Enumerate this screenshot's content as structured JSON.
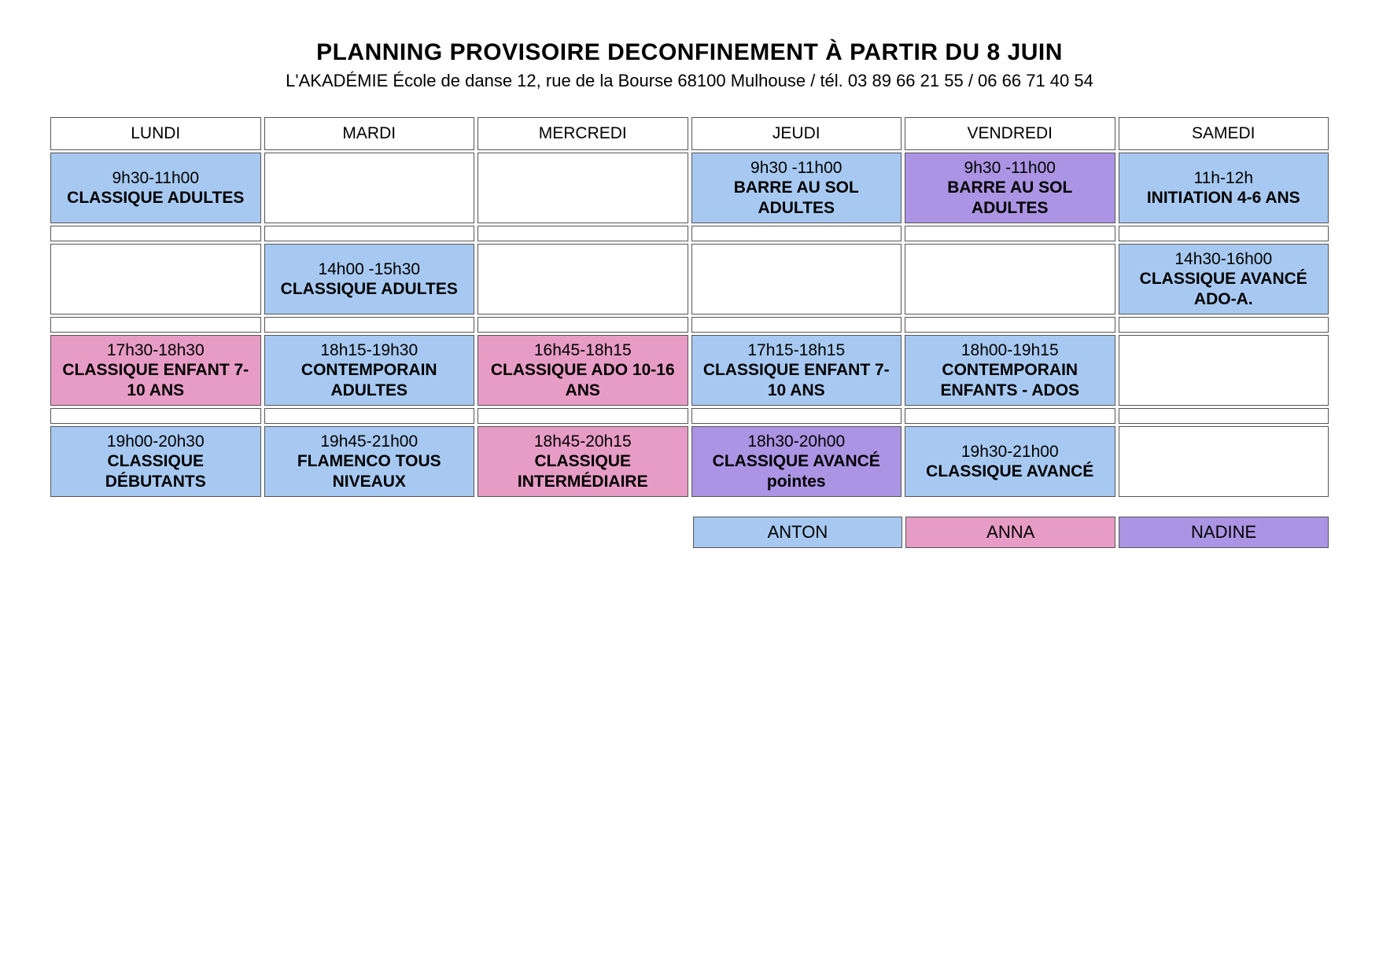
{
  "header": {
    "title": "PLANNING PROVISOIRE DECONFINEMENT  À PARTIR  DU 8 JUIN",
    "subtitle": "L'AKADÉMIE École de danse 12, rue de la Bourse 68100 Mulhouse / tél. 03 89 66 21 55 / 06 66 71 40 54"
  },
  "colors": {
    "anton": "#a7c9f1",
    "anna": "#e79cc5",
    "nadine": "#ab94e3",
    "empty": "#ffffff",
    "border": "#555555",
    "text": "#000000"
  },
  "days": [
    "LUNDI",
    "MARDI",
    "MERCREDI",
    "JEUDI",
    "VENDREDI",
    "SAMEDI"
  ],
  "rows": [
    {
      "type": "slot",
      "cells": [
        {
          "time": "9h30-11h00",
          "course": "CLASSIQUE ADULTES",
          "color": "anton"
        },
        {
          "empty": true
        },
        {
          "empty": true
        },
        {
          "time": "9h30 -11h00",
          "course": "BARRE AU SOL ADULTES",
          "color": "anton"
        },
        {
          "time": "9h30 -11h00",
          "course": "BARRE AU SOL ADULTES",
          "color": "nadine"
        },
        {
          "time": "11h-12h",
          "course": "INITIATION 4-6 ANS",
          "color": "anton"
        }
      ]
    },
    {
      "type": "spacer"
    },
    {
      "type": "slot",
      "cells": [
        {
          "empty": true
        },
        {
          "time": "14h00 -15h30",
          "course": "CLASSIQUE ADULTES",
          "color": "anton"
        },
        {
          "empty": true
        },
        {
          "empty": true
        },
        {
          "empty": true
        },
        {
          "time": "14h30-16h00",
          "course": "CLASSIQUE AVANCÉ ADO-A.",
          "color": "anton"
        }
      ]
    },
    {
      "type": "spacer"
    },
    {
      "type": "slot",
      "cells": [
        {
          "time": "17h30-18h30",
          "course": "CLASSIQUE ENFANT 7-10 ANS",
          "color": "anna"
        },
        {
          "time": "18h15-19h30",
          "course": "CONTEMPORAIN ADULTES",
          "color": "anton"
        },
        {
          "time": "16h45-18h15",
          "course": "CLASSIQUE ADO 10-16 ANS",
          "color": "anna"
        },
        {
          "time": "17h15-18h15",
          "course": "CLASSIQUE ENFANT 7-10 ANS",
          "color": "anton"
        },
        {
          "time": "18h00-19h15",
          "course": "CONTEMPORAIN ENFANTS - ADOS",
          "color": "anton"
        },
        {
          "empty": true
        }
      ]
    },
    {
      "type": "spacer"
    },
    {
      "type": "slot",
      "cells": [
        {
          "time": "19h00-20h30",
          "course": "CLASSIQUE DÉBUTANTS",
          "color": "anton"
        },
        {
          "time": "19h45-21h00",
          "course": "FLAMENCO TOUS NIVEAUX",
          "color": "anton"
        },
        {
          "time": "18h45-20h15",
          "course": "CLASSIQUE INTERMÉDIAIRE",
          "color": "anna"
        },
        {
          "time": "18h30-20h00",
          "course": "CLASSIQUE AVANCÉ pointes",
          "color": "nadine"
        },
        {
          "time": "19h30-21h00",
          "course": "CLASSIQUE AVANCÉ",
          "color": "anton"
        },
        {
          "empty": true
        }
      ]
    }
  ],
  "legend": [
    {
      "label": "ANTON",
      "color": "anton"
    },
    {
      "label": "ANNA",
      "color": "anna"
    },
    {
      "label": "NADINE",
      "color": "nadine"
    }
  ]
}
